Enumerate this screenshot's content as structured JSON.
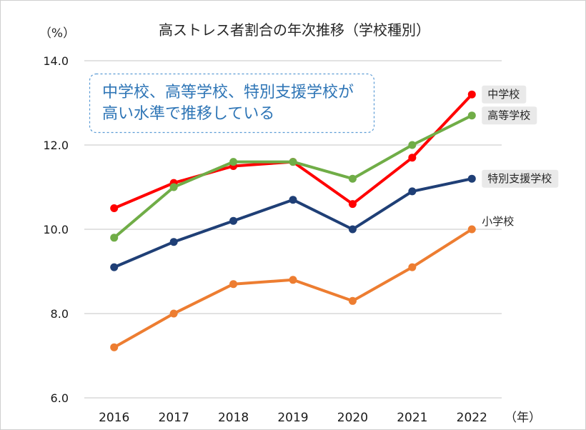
{
  "chart_data": {
    "type": "line",
    "title": "高ストレス者割合の年次推移（学校種別）",
    "ylabel": "（%）",
    "xlabel": "（年）",
    "categories": [
      "2016",
      "2017",
      "2018",
      "2019",
      "2020",
      "2021",
      "2022"
    ],
    "ylim": [
      6.0,
      14.0
    ],
    "yticks": [
      "6.0",
      "8.0",
      "10.0",
      "12.0",
      "14.0"
    ],
    "grid": true,
    "series": [
      {
        "name": "中学校",
        "color": "#ff0000",
        "values": [
          10.5,
          11.1,
          11.5,
          11.6,
          10.6,
          11.7,
          13.2
        ]
      },
      {
        "name": "高等学校",
        "color": "#70ad47",
        "values": [
          9.8,
          11.0,
          11.6,
          11.6,
          11.2,
          12.0,
          12.7
        ]
      },
      {
        "name": "特別支援学校",
        "color": "#1f3f76",
        "values": [
          9.1,
          9.7,
          10.2,
          10.7,
          10.0,
          10.9,
          11.2
        ]
      },
      {
        "name": "小学校",
        "color": "#ed7d31",
        "values": [
          7.2,
          8.0,
          8.7,
          8.8,
          8.3,
          9.1,
          10.0
        ]
      }
    ],
    "annotation": {
      "lines": [
        "中学校、高等学校、特別支援学校が",
        "高い水準で推移している"
      ]
    }
  },
  "colors": {
    "grid": "#d9d9d9",
    "text": "#262626",
    "annotation_text": "#2e75b6",
    "annotation_border": "#5b9bd5",
    "label_bg": "#e9e9e9",
    "frame": "#cfcfcf"
  }
}
